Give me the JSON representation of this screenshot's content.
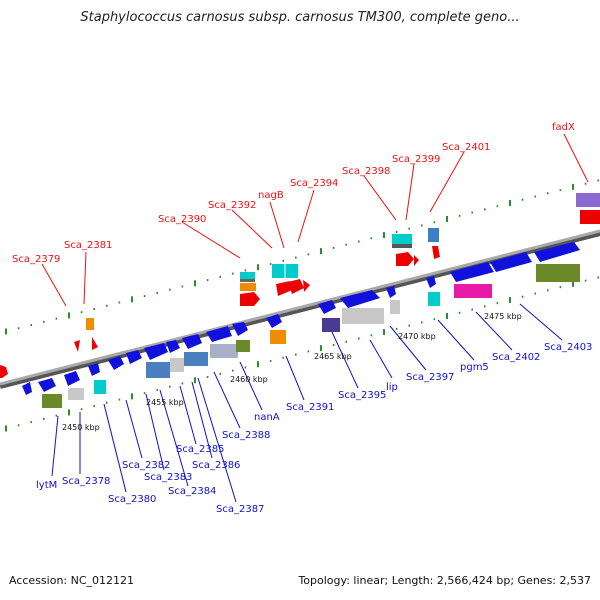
{
  "title": "Staphylococcus carnosus subsp. carnosus TM300, complete geno...",
  "footer": {
    "accession": "Accession: NC_012121",
    "summary": "Topology: linear; Length: 2,566,424 bp; Genes: 2,537"
  },
  "colors": {
    "axis": "#8a8a8a",
    "tick": "#2e8b2e",
    "label_top": "#ee1111",
    "label_bottom": "#1111cc"
  },
  "scale_labels": [
    "2450 kbp",
    "2455 kbp",
    "2460 kbp",
    "2465 kbp",
    "2470 kbp",
    "2475 kbp"
  ],
  "top_labels": [
    "Sca_2379",
    "Sca_2381",
    "Sca_2390",
    "Sca_2392",
    "nagB",
    "Sca_2394",
    "Sca_2398",
    "Sca_2399",
    "Sca_2401",
    "fadX"
  ],
  "bottom_labels": [
    "lytM",
    "Sca_2378",
    "Sca_2380",
    "Sca_2382",
    "Sca_2383",
    "Sca_2384",
    "Sca_2385",
    "Sca_2386",
    "Sca_2387",
    "Sca_2388",
    "nanA",
    "Sca_2391",
    "Sca_2395",
    "lip",
    "Sca_2397",
    "pgm5",
    "Sca_2402",
    "Sca_2403"
  ]
}
